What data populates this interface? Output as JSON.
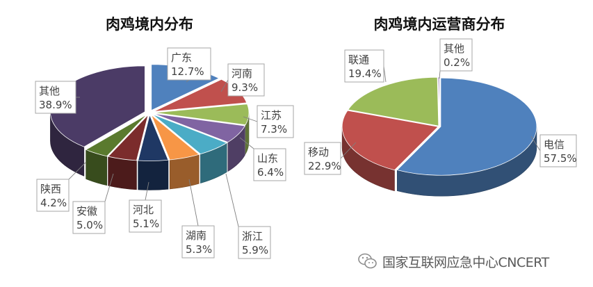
{
  "chart_data": [
    {
      "type": "pie",
      "title": "肉鸡境内分布",
      "labels": [
        "广东",
        "河南",
        "江苏",
        "山东",
        "浙江",
        "湖南",
        "河北",
        "安徽",
        "陕西",
        "其他"
      ],
      "values": [
        12.7,
        9.3,
        7.3,
        6.4,
        5.9,
        5.3,
        5.1,
        5.0,
        4.2,
        38.9
      ],
      "value_labels": [
        "12.7%",
        "9.3%",
        "7.3%",
        "6.4%",
        "5.9%",
        "5.3%",
        "5.1%",
        "5.0%",
        "4.2%",
        "38.9%"
      ],
      "colors": [
        "#4f81bd",
        "#c0504d",
        "#9bbb59",
        "#8064a2",
        "#4bacc6",
        "#f79646",
        "#1f3864",
        "#7b2c2c",
        "#5a7a2e",
        "#4b3b66"
      ],
      "style": "3d-exploded",
      "legend": "none"
    },
    {
      "type": "pie",
      "title": "肉鸡境内运营商分布",
      "labels": [
        "电信",
        "移动",
        "联通",
        "其他"
      ],
      "values": [
        57.5,
        22.9,
        19.4,
        0.2
      ],
      "value_labels": [
        "57.5%",
        "22.9%",
        "19.4%",
        "0.2%"
      ],
      "colors": [
        "#4f81bd",
        "#c0504d",
        "#9bbb59",
        "#8064a2"
      ],
      "style": "3d",
      "legend": "none"
    }
  ],
  "watermark": {
    "text": "国家互联网应急中心CNCERT",
    "icon": "wechat-icon"
  }
}
